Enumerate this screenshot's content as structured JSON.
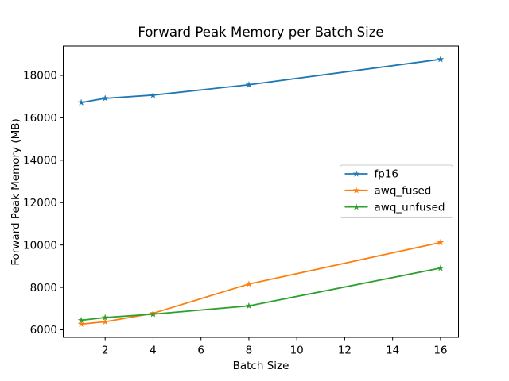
{
  "chart_data": {
    "type": "line",
    "title": "Forward Peak Memory per Batch Size",
    "xlabel": "Batch Size",
    "ylabel": "Forward Peak Memory (MB)",
    "x": [
      1,
      2,
      4,
      8,
      16
    ],
    "series": [
      {
        "name": "fp16",
        "color": "#1f77b4",
        "values": [
          16720,
          16920,
          17070,
          17560,
          18760
        ]
      },
      {
        "name": "awq_fused",
        "color": "#ff7f0e",
        "values": [
          6270,
          6380,
          6780,
          8160,
          10120
        ]
      },
      {
        "name": "awq_unfused",
        "color": "#2ca02c",
        "values": [
          6450,
          6580,
          6740,
          7130,
          8910
        ]
      }
    ],
    "marker": "star",
    "xlim": [
      0.25,
      16.75
    ],
    "ylim": [
      5645,
      19385
    ],
    "xticks": [
      2,
      4,
      6,
      8,
      10,
      12,
      14,
      16
    ],
    "yticks": [
      6000,
      8000,
      10000,
      12000,
      14000,
      16000,
      18000
    ],
    "grid": false,
    "legend_position": "center-right",
    "legend_border_color": "#cccccc",
    "background": "#ffffff",
    "spine_color": "#000000"
  }
}
